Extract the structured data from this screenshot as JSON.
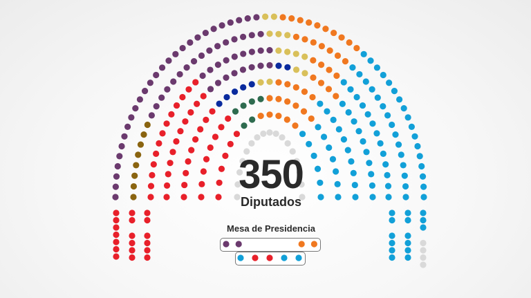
{
  "center": {
    "total": "350",
    "label": "Diputados"
  },
  "mesa": {
    "title": "Mesa de Presidencia",
    "row1": [
      "#6b3a6e",
      "#6b3a6e",
      null,
      null,
      null,
      null,
      "#f07820",
      "#f07820"
    ],
    "row2": [
      "#12a0d8",
      "#e8202a",
      "#e8202a",
      "#12a0d8",
      "#12a0d8"
    ]
  },
  "colors": {
    "purple": "#6b3a6e",
    "brown": "#8a6410",
    "red": "#e8202a",
    "navy": "#0a2b9e",
    "green": "#2e6b4f",
    "yellow": "#d9c05a",
    "orange": "#f07820",
    "blue": "#12a0d8",
    "grey": "#d9d9d9"
  },
  "rows": [
    [
      [
        "purple",
        27
      ],
      [
        "yellow",
        2
      ],
      [
        "orange",
        10
      ],
      [
        "blue",
        17
      ]
    ],
    [
      [
        "brown",
        8
      ],
      [
        "purple",
        16
      ],
      [
        "yellow",
        3
      ],
      [
        "orange",
        7
      ],
      [
        "blue",
        15
      ]
    ],
    [
      [
        "red",
        13
      ],
      [
        "purple",
        9
      ],
      [
        "yellow",
        4
      ],
      [
        "orange",
        4
      ],
      [
        "blue",
        13
      ]
    ],
    [
      [
        "red",
        11
      ],
      [
        "purple",
        8
      ],
      [
        "navy",
        2
      ],
      [
        "yellow",
        2
      ],
      [
        "orange",
        4
      ],
      [
        "blue",
        10
      ]
    ],
    [
      [
        "red",
        9
      ],
      [
        "navy",
        5
      ],
      [
        "yellow",
        2
      ],
      [
        "orange",
        5
      ],
      [
        "blue",
        10
      ]
    ],
    [
      [
        "red",
        8
      ],
      [
        "green",
        4
      ],
      [
        "orange",
        6
      ],
      [
        "blue",
        7
      ]
    ],
    [
      [
        "red",
        6
      ],
      [
        "green",
        2
      ],
      [
        "orange",
        5
      ],
      [
        "blue",
        6
      ]
    ],
    [
      [
        "grey",
        17
      ]
    ]
  ],
  "blocks_left": [
    [
      [
        "red",
        7
      ]
    ],
    [
      [
        "red",
        2
      ],
      [
        "red",
        4
      ]
    ],
    [
      [
        "red",
        2
      ],
      [
        "red",
        4
      ]
    ]
  ],
  "blocks_right": [
    [
      [
        "blue",
        2
      ],
      [
        "blue",
        4
      ]
    ],
    [
      [
        "blue",
        2
      ],
      [
        "blue",
        4
      ]
    ],
    [
      [
        "blue",
        3
      ],
      [
        "grey",
        4
      ]
    ]
  ]
}
